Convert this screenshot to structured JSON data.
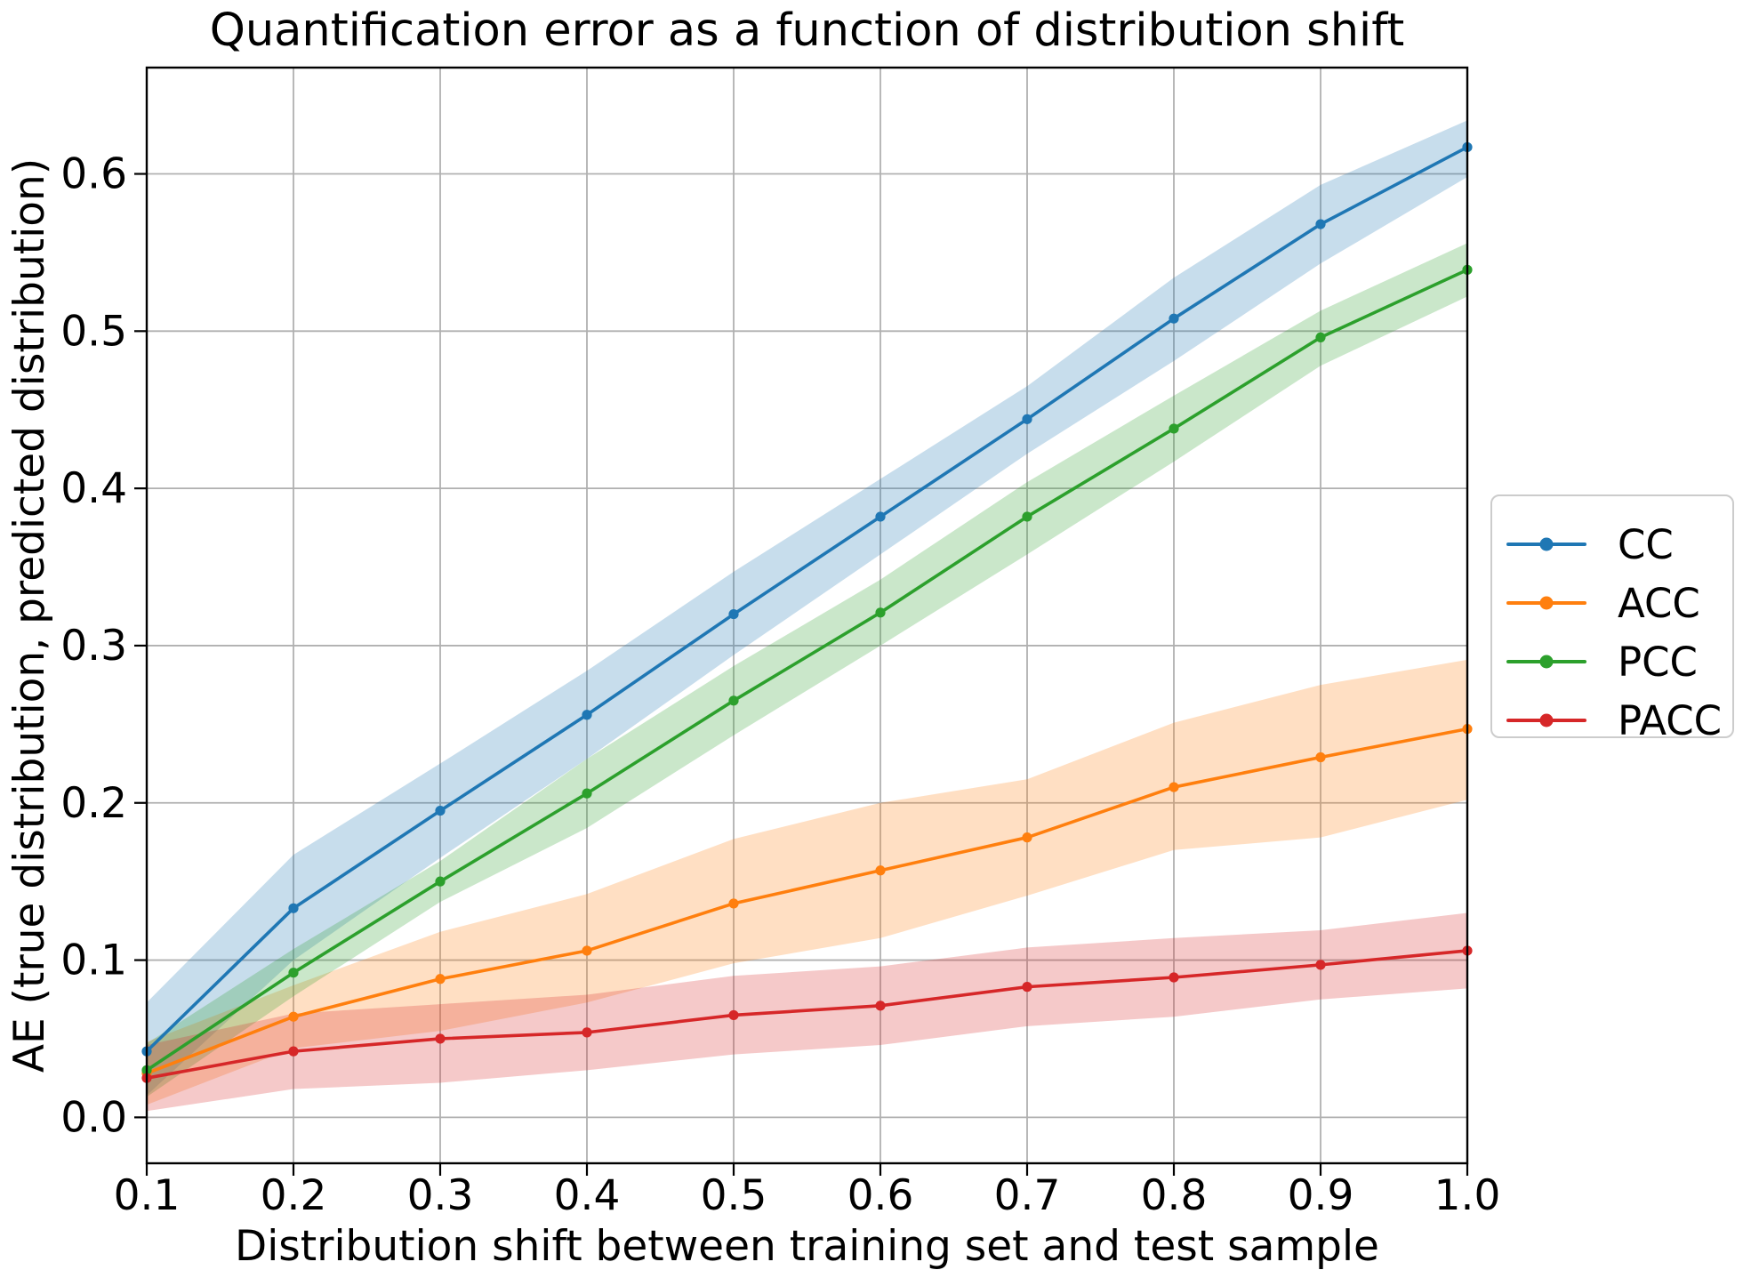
{
  "chart_data": {
    "type": "line",
    "title": "Quantification error as a function of distribution shift",
    "xlabel": "Distribution shift between training set and test sample",
    "ylabel": "AE (true distribution, predicted distribution)",
    "x": [
      0.1,
      0.2,
      0.3,
      0.4,
      0.5,
      0.6,
      0.7,
      0.8,
      0.9,
      1.0
    ],
    "x_tick_labels": [
      "0.1",
      "0.2",
      "0.3",
      "0.4",
      "0.5",
      "0.6",
      "0.7",
      "0.8",
      "0.9",
      "1.0"
    ],
    "y_tick_values": [
      0.0,
      0.1,
      0.2,
      0.3,
      0.4,
      0.5,
      0.6
    ],
    "y_tick_labels": [
      "0.0",
      "0.1",
      "0.2",
      "0.3",
      "0.4",
      "0.5",
      "0.6"
    ],
    "xlim": [
      0.1,
      1.0
    ],
    "ylim": [
      -0.0292,
      0.6676
    ],
    "grid": true,
    "grid_color": "#b0b0b0",
    "band_opacity": 0.25,
    "legend_position": "outside-center-right",
    "series": [
      {
        "name": "CC",
        "color": "#1f77b4",
        "values": [
          0.042,
          0.133,
          0.195,
          0.256,
          0.32,
          0.382,
          0.444,
          0.508,
          0.568,
          0.617
        ],
        "band_lower": [
          0.014,
          0.1,
          0.165,
          0.228,
          0.294,
          0.358,
          0.422,
          0.481,
          0.543,
          0.598
        ],
        "band_upper": [
          0.073,
          0.167,
          0.225,
          0.284,
          0.347,
          0.406,
          0.465,
          0.534,
          0.593,
          0.634
        ]
      },
      {
        "name": "ACC",
        "color": "#ff7f0e",
        "values": [
          0.028,
          0.064,
          0.088,
          0.106,
          0.136,
          0.157,
          0.178,
          0.21,
          0.229,
          0.247
        ],
        "band_lower": [
          0.008,
          0.044,
          0.055,
          0.073,
          0.098,
          0.114,
          0.141,
          0.17,
          0.178,
          0.202
        ],
        "band_upper": [
          0.048,
          0.084,
          0.118,
          0.142,
          0.177,
          0.2,
          0.215,
          0.251,
          0.275,
          0.291
        ]
      },
      {
        "name": "PCC",
        "color": "#2ca02c",
        "values": [
          0.03,
          0.092,
          0.15,
          0.206,
          0.265,
          0.321,
          0.382,
          0.438,
          0.496,
          0.539
        ],
        "band_lower": [
          0.013,
          0.077,
          0.137,
          0.184,
          0.243,
          0.3,
          0.358,
          0.417,
          0.478,
          0.522
        ],
        "band_upper": [
          0.047,
          0.107,
          0.163,
          0.228,
          0.287,
          0.342,
          0.404,
          0.459,
          0.513,
          0.556
        ]
      },
      {
        "name": "PACC",
        "color": "#d62728",
        "values": [
          0.025,
          0.042,
          0.05,
          0.054,
          0.065,
          0.071,
          0.083,
          0.089,
          0.097,
          0.106
        ],
        "band_lower": [
          0.004,
          0.018,
          0.022,
          0.03,
          0.04,
          0.046,
          0.058,
          0.064,
          0.075,
          0.082
        ],
        "band_upper": [
          0.046,
          0.066,
          0.072,
          0.078,
          0.09,
          0.096,
          0.108,
          0.114,
          0.119,
          0.13
        ]
      }
    ]
  }
}
